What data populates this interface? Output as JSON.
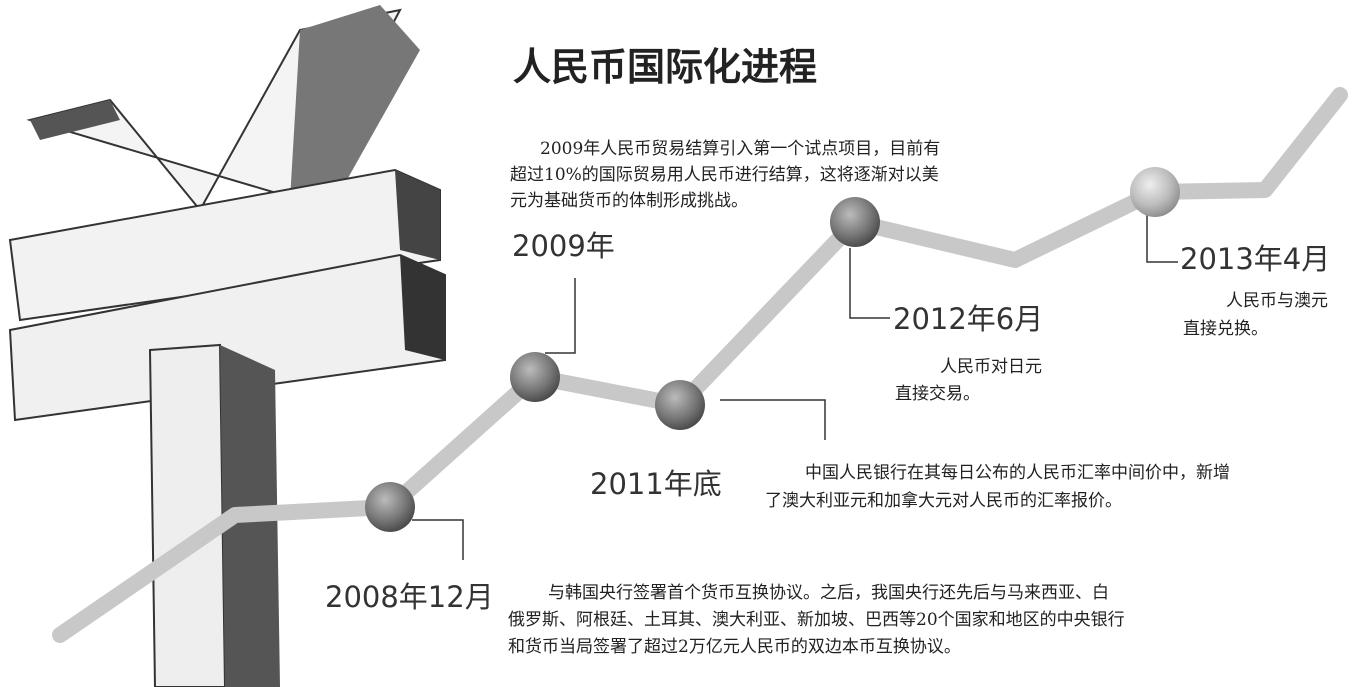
{
  "header": {
    "title": "人民币国际化进程"
  },
  "events": [
    {
      "date": "2008年12月",
      "lines": [
        "与韩国央行签署首个货币互换协议。之后，我国央行还先后与马来西亚、白",
        "俄罗斯、阿根廷、土耳其、澳大利亚、新加坡、巴西等20个国家和地区的中央银行",
        "和货币当局签署了超过2万亿元人民币的双边本币互换协议。"
      ]
    },
    {
      "date": "2009年",
      "lines": [
        "2009年人民币贸易结算引入第一个试点项目，目前有",
        "超过10%的国际贸易用人民币进行结算，这将逐渐对以美",
        "元为基础货币的体制形成挑战。"
      ]
    },
    {
      "date": "2011年底",
      "lines": [
        "中国人民银行在其每日公布的人民币汇率中间价中，新增",
        "了澳大利亚元和加拿大元对人民币的汇率报价。"
      ]
    },
    {
      "date": "2012年6月",
      "lines": [
        "人民币对日元",
        "直接交易。"
      ]
    },
    {
      "date": "2013年4月",
      "lines": [
        "人民币与澳元",
        "直接兑换。"
      ]
    }
  ]
}
